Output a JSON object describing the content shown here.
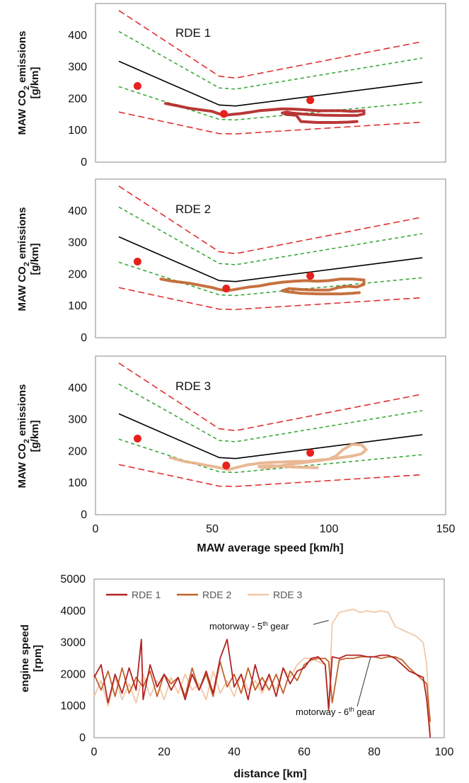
{
  "chart_data": [
    {
      "type": "line",
      "panel": "RDE 1",
      "title": "RDE 1",
      "ylabel": "MAW CO2 emissions [g/km]",
      "ylabel_line1": "MAW CO",
      "ylabel_sub": "2",
      "ylabel_line1_end": " emissions",
      "ylabel_line2": "[g/km]",
      "xlim": [
        0,
        150
      ],
      "ylim": [
        0,
        500
      ],
      "yticks": [
        "0",
        "100",
        "200",
        "300",
        "400"
      ],
      "reference_curves": {
        "x": [
          10,
          53,
          60,
          140
        ],
        "solid_center": [
          318,
          180,
          177,
          252
        ],
        "green_upper": [
          412,
          234,
          230,
          328
        ],
        "green_lower": [
          238,
          135,
          133,
          189
        ],
        "red_upper": [
          478,
          271,
          265,
          380
        ],
        "red_lower": [
          158,
          90,
          89,
          126
        ]
      },
      "reference_points": [
        {
          "x": 18,
          "y": 240
        },
        {
          "x": 55,
          "y": 152
        },
        {
          "x": 92,
          "y": 195
        }
      ],
      "trace_color": "#b22222",
      "trace": [
        [
          30,
          185
        ],
        [
          35,
          178
        ],
        [
          40,
          170
        ],
        [
          45,
          165
        ],
        [
          50,
          160
        ],
        [
          53,
          152
        ],
        [
          56,
          148
        ],
        [
          58,
          150
        ],
        [
          62,
          153
        ],
        [
          66,
          157
        ],
        [
          70,
          162
        ],
        [
          75,
          165
        ],
        [
          80,
          168
        ],
        [
          85,
          167
        ],
        [
          90,
          165
        ],
        [
          95,
          162
        ],
        [
          100,
          162
        ],
        [
          105,
          162
        ],
        [
          110,
          160
        ],
        [
          115,
          162
        ],
        [
          115,
          152
        ],
        [
          112,
          147
        ],
        [
          105,
          147
        ],
        [
          98,
          148
        ],
        [
          92,
          150
        ],
        [
          88,
          152
        ],
        [
          84,
          155
        ],
        [
          82,
          158
        ],
        [
          80,
          155
        ],
        [
          82,
          150
        ],
        [
          86,
          148
        ],
        [
          88,
          128
        ],
        [
          95,
          125
        ],
        [
          103,
          125
        ],
        [
          108,
          126
        ],
        [
          112,
          128
        ]
      ]
    },
    {
      "type": "line",
      "panel": "RDE 2",
      "title": "RDE 2",
      "ylabel": "MAW CO2 emissions [g/km]",
      "ylabel_line1": "MAW CO",
      "ylabel_sub": "2",
      "ylabel_line1_end": " emissions",
      "ylabel_line2": "[g/km]",
      "xlim": [
        0,
        150
      ],
      "ylim": [
        0,
        500
      ],
      "yticks": [
        "0",
        "100",
        "200",
        "300",
        "400"
      ],
      "reference_curves": {
        "x": [
          10,
          53,
          60,
          140
        ],
        "solid_center": [
          318,
          180,
          177,
          252
        ],
        "green_upper": [
          412,
          234,
          230,
          328
        ],
        "green_lower": [
          238,
          135,
          133,
          189
        ],
        "red_upper": [
          478,
          271,
          265,
          380
        ],
        "red_lower": [
          158,
          90,
          89,
          126
        ]
      },
      "reference_points": [
        {
          "x": 18,
          "y": 240
        },
        {
          "x": 56,
          "y": 155
        },
        {
          "x": 92,
          "y": 195
        }
      ],
      "trace_color": "#c0622a",
      "trace": [
        [
          28,
          185
        ],
        [
          33,
          178
        ],
        [
          40,
          172
        ],
        [
          45,
          165
        ],
        [
          50,
          158
        ],
        [
          53,
          152
        ],
        [
          56,
          148
        ],
        [
          58,
          150
        ],
        [
          62,
          155
        ],
        [
          66,
          160
        ],
        [
          70,
          163
        ],
        [
          75,
          170
        ],
        [
          80,
          175
        ],
        [
          85,
          178
        ],
        [
          90,
          180
        ],
        [
          95,
          178
        ],
        [
          100,
          180
        ],
        [
          105,
          185
        ],
        [
          110,
          185
        ],
        [
          115,
          182
        ],
        [
          115,
          168
        ],
        [
          112,
          160
        ],
        [
          108,
          162
        ],
        [
          104,
          158
        ],
        [
          100,
          150
        ],
        [
          94,
          150
        ],
        [
          88,
          152
        ],
        [
          83,
          155
        ],
        [
          80,
          148
        ],
        [
          82,
          145
        ],
        [
          88,
          140
        ],
        [
          95,
          138
        ],
        [
          105,
          138
        ],
        [
          110,
          140
        ],
        [
          113,
          142
        ]
      ]
    },
    {
      "type": "line",
      "panel": "RDE 3",
      "title": "RDE 3",
      "ylabel": "MAW CO2 emissions [g/km]",
      "ylabel_line1": "MAW CO",
      "ylabel_sub": "2",
      "ylabel_line1_end": " emissions",
      "ylabel_line2": "[g/km]",
      "xlabel": "MAW average speed [km/h]",
      "xlim": [
        0,
        150
      ],
      "ylim": [
        0,
        500
      ],
      "xticks": [
        "0",
        "50",
        "100",
        "150"
      ],
      "yticks": [
        "0",
        "100",
        "200",
        "300",
        "400"
      ],
      "reference_curves": {
        "x": [
          10,
          53,
          60,
          140
        ],
        "solid_center": [
          318,
          180,
          177,
          252
        ],
        "green_upper": [
          412,
          234,
          230,
          328
        ],
        "green_lower": [
          238,
          135,
          133,
          189
        ],
        "red_upper": [
          478,
          271,
          265,
          380
        ],
        "red_lower": [
          158,
          90,
          89,
          126
        ]
      },
      "reference_points": [
        {
          "x": 18,
          "y": 240
        },
        {
          "x": 56,
          "y": 155
        },
        {
          "x": 92,
          "y": 195
        }
      ],
      "trace_color": "#e8b08a",
      "trace": [
        [
          32,
          180
        ],
        [
          38,
          168
        ],
        [
          43,
          162
        ],
        [
          48,
          155
        ],
        [
          52,
          150
        ],
        [
          55,
          145
        ],
        [
          57,
          142
        ],
        [
          60,
          148
        ],
        [
          65,
          157
        ],
        [
          70,
          162
        ],
        [
          75,
          165
        ],
        [
          80,
          166
        ],
        [
          85,
          168
        ],
        [
          90,
          168
        ],
        [
          95,
          172
        ],
        [
          100,
          175
        ],
        [
          103,
          185
        ],
        [
          106,
          205
        ],
        [
          110,
          222
        ],
        [
          114,
          220
        ],
        [
          116,
          205
        ],
        [
          114,
          192
        ],
        [
          110,
          185
        ],
        [
          105,
          180
        ],
        [
          100,
          175
        ],
        [
          95,
          170
        ],
        [
          90,
          165
        ],
        [
          85,
          160
        ],
        [
          80,
          155
        ],
        [
          75,
          150
        ],
        [
          72,
          148
        ],
        [
          70,
          152
        ],
        [
          75,
          155
        ],
        [
          85,
          150
        ],
        [
          95,
          148
        ]
      ]
    },
    {
      "type": "line",
      "xlabel": "distance [km]",
      "ylabel": "engine speed [rpm]",
      "ylabel_line1": "engine speed",
      "ylabel_line2": "[rpm]",
      "xlim": [
        0,
        100
      ],
      "ylim": [
        0,
        5000
      ],
      "xticks": [
        "0",
        "20",
        "40",
        "60",
        "80",
        "100"
      ],
      "yticks": [
        "0",
        "1000",
        "2000",
        "3000",
        "4000",
        "5000"
      ],
      "legend": [
        "RDE 1",
        "RDE 2",
        "RDE 3"
      ],
      "legend_position": "top-left",
      "annotations": {
        "fifth_gear": {
          "text": "motorway - 5",
          "sup": "th",
          "tail": " gear",
          "x": 67,
          "y": 3700
        },
        "sixth_gear": {
          "text": "motorway - 6",
          "sup": "th",
          "tail": " gear",
          "x": 79,
          "y": 2550
        }
      },
      "series": [
        {
          "name": "RDE 1",
          "color": "#b22222",
          "x": [
            0,
            2,
            4,
            6,
            8,
            10,
            12,
            13.5,
            14,
            16,
            18,
            20,
            22,
            24,
            26,
            28,
            30,
            32,
            34,
            36,
            38,
            40,
            42,
            44,
            46,
            48,
            50,
            52,
            54,
            56,
            58,
            60,
            62,
            64,
            66,
            67,
            68,
            70,
            72,
            74,
            76,
            78,
            80,
            82,
            84,
            86,
            88,
            90,
            92,
            94,
            95,
            96
          ],
          "y": [
            1900,
            2300,
            1100,
            2000,
            1400,
            2200,
            1500,
            3100,
            1200,
            2300,
            1600,
            2000,
            1500,
            1900,
            1200,
            2000,
            1500,
            2100,
            1400,
            2500,
            3100,
            1600,
            2000,
            1200,
            2300,
            1500,
            2000,
            1300,
            2200,
            1700,
            2100,
            2200,
            2500,
            2550,
            2300,
            900,
            2550,
            2500,
            2600,
            2600,
            2600,
            2550,
            2550,
            2600,
            2600,
            2500,
            2300,
            2100,
            2000,
            1900,
            1200,
            0
          ]
        },
        {
          "name": "RDE 2",
          "color": "#c0622a",
          "x": [
            0,
            2,
            4,
            6,
            8,
            10,
            12,
            14,
            16,
            18,
            20,
            22,
            24,
            26,
            28,
            30,
            32,
            34,
            36,
            38,
            40,
            42,
            44,
            46,
            48,
            50,
            52,
            54,
            56,
            58,
            60,
            62,
            64,
            66,
            67,
            68,
            70,
            72,
            74,
            76,
            78,
            80,
            82,
            84,
            86,
            88,
            90,
            92,
            94,
            95,
            96
          ],
          "y": [
            2000,
            1500,
            2100,
            1300,
            2200,
            1400,
            1900,
            1600,
            2100,
            1300,
            2000,
            1700,
            1900,
            1300,
            2200,
            1500,
            2000,
            1300,
            2400,
            1600,
            2000,
            1400,
            2200,
            1500,
            1900,
            1500,
            2000,
            1400,
            2100,
            1800,
            2300,
            2450,
            2500,
            2500,
            2400,
            1100,
            2450,
            2500,
            2500,
            2550,
            2550,
            2550,
            2500,
            2550,
            2550,
            2450,
            2200,
            2000,
            1800,
            1700,
            500
          ]
        },
        {
          "name": "RDE 3",
          "color": "#f2c7a5",
          "x": [
            0,
            2,
            4,
            6,
            8,
            10,
            12,
            14,
            16,
            18,
            20,
            22,
            24,
            26,
            28,
            30,
            32,
            34,
            36,
            38,
            40,
            42,
            44,
            46,
            48,
            50,
            52,
            54,
            56,
            58,
            60,
            62,
            64,
            66,
            67,
            68,
            70,
            72,
            74,
            76,
            78,
            80,
            82,
            84,
            86,
            88,
            90,
            92,
            94,
            95,
            96
          ],
          "y": [
            1300,
            1800,
            1000,
            1900,
            1200,
            1700,
            1100,
            2000,
            1300,
            1800,
            1200,
            1900,
            1400,
            2000,
            1500,
            1700,
            1200,
            2100,
            1400,
            1800,
            1300,
            2000,
            1500,
            1800,
            1400,
            1900,
            1500,
            2200,
            1900,
            2300,
            2500,
            2500,
            2400,
            2300,
            800,
            3600,
            3950,
            4000,
            4050,
            3950,
            4000,
            3950,
            4000,
            3950,
            3500,
            3400,
            3300,
            3200,
            3000,
            2300,
            100
          ]
        }
      ]
    }
  ]
}
